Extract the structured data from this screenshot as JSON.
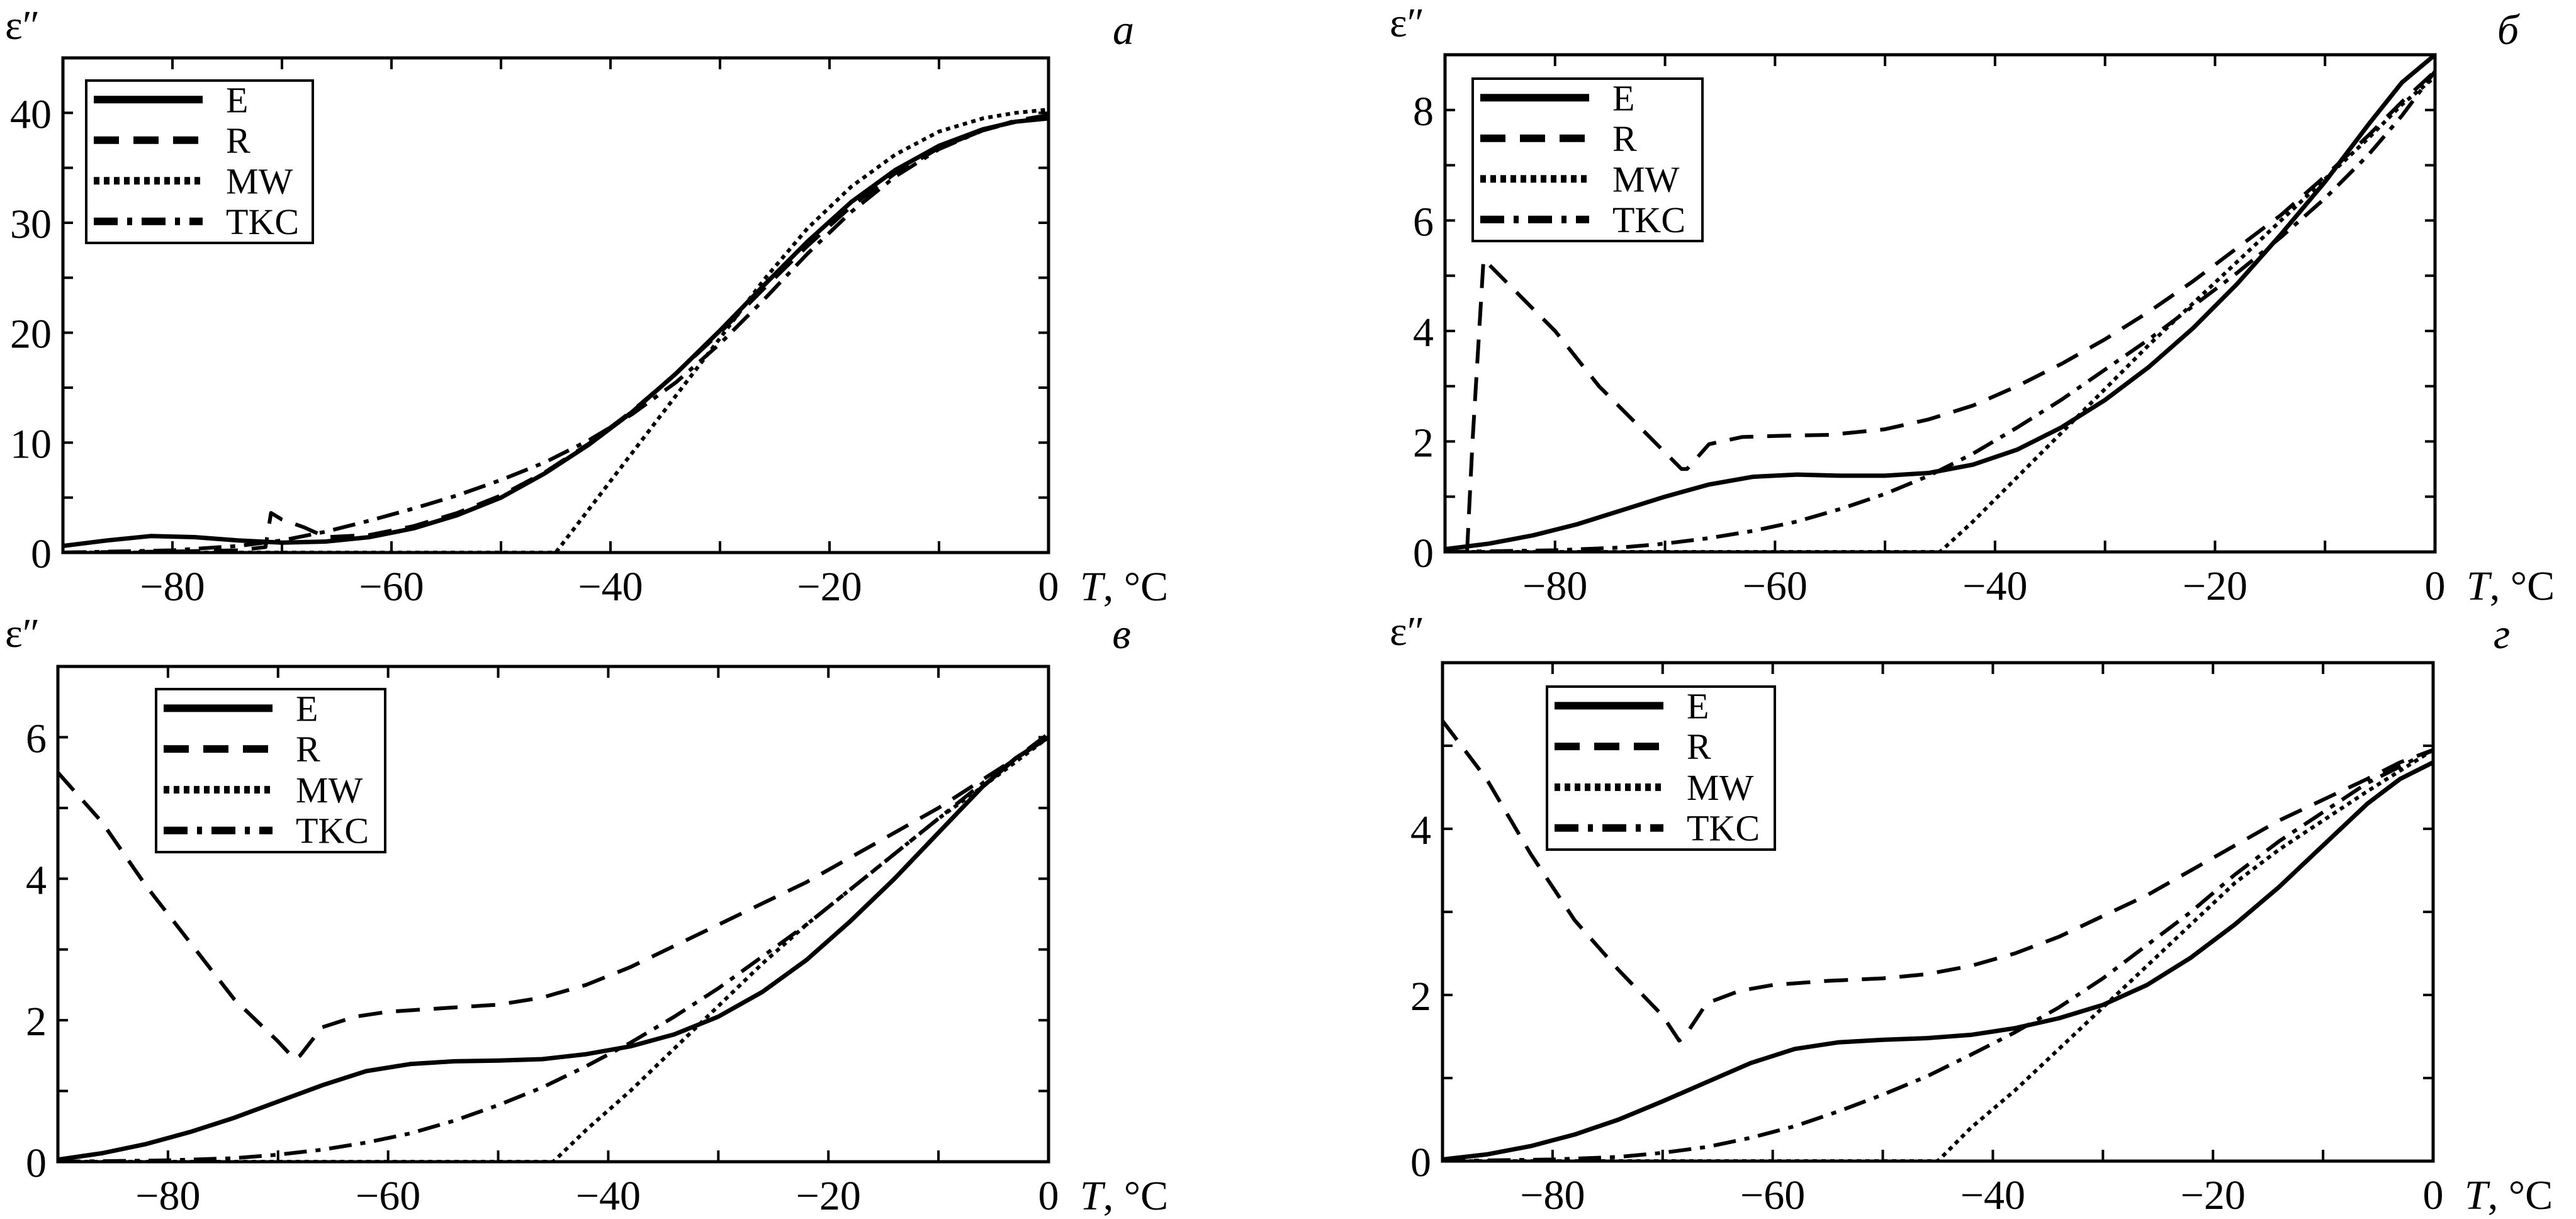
{
  "chart_data": [
    {
      "type": "line",
      "panel_label": "а",
      "xlabel": "T, °C",
      "ylabel": "ε″",
      "xlim": [
        -90,
        0
      ],
      "ylim": [
        0,
        45
      ],
      "xticks": [
        -80,
        -60,
        -40,
        -20,
        0
      ],
      "xticks_minor_step": 10,
      "yticks": [
        0,
        10,
        20,
        30,
        40
      ],
      "yticks_minor_step": 5,
      "legend": {
        "placement": "top-left",
        "entries": [
          "E",
          "R",
          "MW",
          "TKC"
        ]
      },
      "series": [
        {
          "name": "E",
          "style": "solid",
          "x": [
            -90,
            -86,
            -82,
            -78,
            -74,
            -70,
            -66,
            -62,
            -58,
            -54,
            -50,
            -46,
            -42,
            -38,
            -34,
            -30,
            -26,
            -22,
            -18,
            -14,
            -10,
            -6,
            -3,
            0
          ],
          "y": [
            0.6,
            1.1,
            1.5,
            1.4,
            1.1,
            0.9,
            1.0,
            1.4,
            2.2,
            3.4,
            5.0,
            7.2,
            9.8,
            12.8,
            16.3,
            20.2,
            24.3,
            28.3,
            31.9,
            34.8,
            37.0,
            38.5,
            39.2,
            39.5
          ]
        },
        {
          "name": "R",
          "style": "dashed",
          "x": [
            -90,
            -80,
            -74,
            -71.5,
            -71,
            -70,
            -68,
            -66,
            -62,
            -58,
            -54,
            -50,
            -46,
            -42,
            -38,
            -34,
            -30,
            -26,
            -22,
            -18,
            -14,
            -10,
            -6,
            -3,
            0
          ],
          "y": [
            0.0,
            0.1,
            0.2,
            0.5,
            3.6,
            3.0,
            2.3,
            1.4,
            1.6,
            2.4,
            3.6,
            5.2,
            7.3,
            9.9,
            12.9,
            16.3,
            20.0,
            24.0,
            27.9,
            31.5,
            34.5,
            36.8,
            38.4,
            39.3,
            39.8
          ]
        },
        {
          "name": "MW",
          "style": "dotted",
          "x": [
            -90,
            -45,
            -40,
            -35,
            -30,
            -26,
            -22,
            -18,
            -14,
            -10,
            -6,
            -3,
            0
          ],
          "y": [
            0.0,
            0.0,
            6.5,
            13.0,
            19.5,
            24.8,
            29.5,
            33.3,
            36.2,
            38.3,
            39.5,
            40.0,
            40.3
          ]
        },
        {
          "name": "TKC",
          "style": "dashdot",
          "x": [
            -90,
            -80,
            -74,
            -70,
            -66,
            -62,
            -58,
            -54,
            -50,
            -46,
            -42,
            -38,
            -34,
            -30,
            -26,
            -22,
            -18,
            -14,
            -10,
            -6,
            -3,
            0
          ],
          "y": [
            0.0,
            0.2,
            0.6,
            1.1,
            1.9,
            2.9,
            4.0,
            5.2,
            6.6,
            8.2,
            10.2,
            12.6,
            15.5,
            19.0,
            23.0,
            27.2,
            31.0,
            34.2,
            36.7,
            38.4,
            39.2,
            39.6
          ]
        }
      ]
    },
    {
      "type": "line",
      "panel_label": "б",
      "xlabel": "T, °C",
      "ylabel": "ε″",
      "xlim": [
        -90,
        0
      ],
      "ylim": [
        0,
        9
      ],
      "xticks": [
        -80,
        -60,
        -40,
        -20,
        0
      ],
      "xticks_minor_step": 10,
      "yticks": [
        0,
        2,
        4,
        6,
        8
      ],
      "yticks_minor_step": 1,
      "legend": {
        "placement": "top-left",
        "entries": [
          "E",
          "R",
          "MW",
          "TKC"
        ]
      },
      "series": [
        {
          "name": "E",
          "style": "solid",
          "x": [
            -90,
            -86,
            -82,
            -78,
            -74,
            -70,
            -66,
            -62,
            -58,
            -54,
            -50,
            -46,
            -42,
            -38,
            -34,
            -30,
            -26,
            -22,
            -18,
            -14,
            -10,
            -6,
            -3,
            0
          ],
          "y": [
            0.05,
            0.15,
            0.3,
            0.5,
            0.75,
            1.0,
            1.22,
            1.36,
            1.4,
            1.38,
            1.38,
            1.43,
            1.58,
            1.85,
            2.25,
            2.75,
            3.35,
            4.05,
            4.85,
            5.75,
            6.7,
            7.75,
            8.5,
            9.0
          ]
        },
        {
          "name": "R",
          "style": "dashed",
          "x": [
            -88,
            -87.5,
            -86.5,
            -84,
            -80,
            -76,
            -72,
            -68.5,
            -68,
            -66,
            -63,
            -60,
            -55,
            -50,
            -46,
            -42,
            -38,
            -34,
            -30,
            -26,
            -22,
            -18,
            -14,
            -10,
            -6,
            -3,
            0
          ],
          "y": [
            0.0,
            2.0,
            5.3,
            4.8,
            4.0,
            3.0,
            2.2,
            1.5,
            1.5,
            1.95,
            2.08,
            2.1,
            2.12,
            2.22,
            2.4,
            2.65,
            3.0,
            3.4,
            3.85,
            4.35,
            4.9,
            5.5,
            6.1,
            6.8,
            7.55,
            8.15,
            8.7
          ]
        },
        {
          "name": "MW",
          "style": "dotted",
          "x": [
            -90,
            -45,
            -42,
            -38,
            -34,
            -30,
            -26,
            -22,
            -18,
            -14,
            -10,
            -6,
            -3,
            0
          ],
          "y": [
            0.0,
            0.0,
            0.55,
            1.35,
            2.15,
            2.95,
            3.75,
            4.5,
            5.25,
            6.0,
            6.75,
            7.5,
            8.1,
            8.6
          ]
        },
        {
          "name": "TKC",
          "style": "dashdot",
          "x": [
            -90,
            -80,
            -74,
            -70,
            -66,
            -62,
            -58,
            -54,
            -50,
            -46,
            -42,
            -38,
            -34,
            -30,
            -26,
            -22,
            -18,
            -14,
            -10,
            -6,
            -3,
            0
          ],
          "y": [
            0.0,
            0.03,
            0.08,
            0.15,
            0.25,
            0.38,
            0.55,
            0.78,
            1.05,
            1.38,
            1.78,
            2.25,
            2.75,
            3.3,
            3.85,
            4.45,
            5.05,
            5.7,
            6.4,
            7.2,
            7.9,
            8.7
          ]
        }
      ]
    },
    {
      "type": "line",
      "panel_label": "в",
      "xlabel": "T, °C",
      "ylabel": "ε″",
      "xlim": [
        -90,
        0
      ],
      "ylim": [
        0,
        7
      ],
      "xticks": [
        -80,
        -60,
        -40,
        -20,
        0
      ],
      "xticks_minor_step": 10,
      "yticks": [
        0,
        2,
        4,
        6
      ],
      "yticks_minor_step": 1,
      "legend": {
        "placement": "top-left",
        "entries": [
          "E",
          "R",
          "MW",
          "TKC"
        ]
      },
      "series": [
        {
          "name": "E",
          "style": "solid",
          "x": [
            -90,
            -86,
            -82,
            -78,
            -74,
            -70,
            -66,
            -62,
            -58,
            -54,
            -50,
            -46,
            -42,
            -38,
            -34,
            -30,
            -26,
            -22,
            -18,
            -14,
            -10,
            -6,
            -3,
            0
          ],
          "y": [
            0.03,
            0.12,
            0.25,
            0.42,
            0.62,
            0.85,
            1.08,
            1.28,
            1.38,
            1.42,
            1.43,
            1.45,
            1.52,
            1.63,
            1.8,
            2.05,
            2.4,
            2.85,
            3.4,
            4.0,
            4.65,
            5.3,
            5.7,
            6.0
          ]
        },
        {
          "name": "R",
          "style": "dashed",
          "x": [
            -90,
            -86,
            -82,
            -78,
            -74,
            -70,
            -68.5,
            -68,
            -66,
            -63,
            -60,
            -55,
            -50,
            -46,
            -42,
            -38,
            -34,
            -30,
            -26,
            -22,
            -18,
            -14,
            -10,
            -6,
            -3,
            0
          ],
          "y": [
            5.5,
            4.8,
            3.9,
            3.1,
            2.3,
            1.7,
            1.45,
            1.5,
            1.9,
            2.05,
            2.12,
            2.17,
            2.22,
            2.32,
            2.5,
            2.75,
            3.05,
            3.35,
            3.65,
            3.95,
            4.3,
            4.65,
            5.0,
            5.4,
            5.7,
            6.0
          ]
        },
        {
          "name": "MW",
          "style": "dotted",
          "x": [
            -90,
            -45,
            -42,
            -38,
            -34,
            -30,
            -26,
            -22,
            -18,
            -14,
            -10,
            -6,
            -3,
            0
          ],
          "y": [
            0.0,
            0.0,
            0.45,
            1.0,
            1.6,
            2.2,
            2.8,
            3.35,
            3.85,
            4.35,
            4.85,
            5.3,
            5.65,
            6.0
          ]
        },
        {
          "name": "TKC",
          "style": "dashdot",
          "x": [
            -90,
            -80,
            -74,
            -70,
            -66,
            -62,
            -58,
            -54,
            -50,
            -46,
            -42,
            -38,
            -34,
            -30,
            -26,
            -22,
            -18,
            -14,
            -10,
            -6,
            -3,
            0
          ],
          "y": [
            0.0,
            0.02,
            0.05,
            0.1,
            0.17,
            0.27,
            0.4,
            0.58,
            0.8,
            1.05,
            1.35,
            1.68,
            2.05,
            2.45,
            2.9,
            3.35,
            3.85,
            4.35,
            4.85,
            5.35,
            5.7,
            6.05
          ]
        }
      ]
    },
    {
      "type": "line",
      "panel_label": "г",
      "xlabel": "T, °C",
      "ylabel": "ε″",
      "xlim": [
        -90,
        0
      ],
      "ylim": [
        0,
        6
      ],
      "xticks": [
        -80,
        -60,
        -40,
        -20,
        0
      ],
      "xticks_minor_step": 10,
      "yticks": [
        0,
        2,
        4
      ],
      "yticks_minor_step": 1,
      "legend": {
        "placement": "top-left",
        "entries": [
          "E",
          "R",
          "MW",
          "TKC"
        ]
      },
      "series": [
        {
          "name": "E",
          "style": "solid",
          "x": [
            -90,
            -86,
            -82,
            -78,
            -74,
            -70,
            -66,
            -62,
            -58,
            -54,
            -50,
            -46,
            -42,
            -38,
            -34,
            -30,
            -26,
            -22,
            -18,
            -14,
            -10,
            -6,
            -3,
            0
          ],
          "y": [
            0.02,
            0.08,
            0.18,
            0.32,
            0.5,
            0.72,
            0.95,
            1.18,
            1.35,
            1.43,
            1.46,
            1.48,
            1.52,
            1.6,
            1.72,
            1.88,
            2.12,
            2.45,
            2.85,
            3.3,
            3.8,
            4.3,
            4.6,
            4.8
          ]
        },
        {
          "name": "R",
          "style": "dashed",
          "x": [
            -90,
            -86,
            -82,
            -78,
            -74,
            -70,
            -68.5,
            -68,
            -66,
            -63,
            -60,
            -55,
            -50,
            -46,
            -42,
            -38,
            -34,
            -30,
            -26,
            -22,
            -18,
            -14,
            -10,
            -6,
            -3,
            0
          ],
          "y": [
            5.3,
            4.6,
            3.7,
            2.9,
            2.3,
            1.75,
            1.45,
            1.5,
            1.9,
            2.05,
            2.12,
            2.17,
            2.2,
            2.25,
            2.35,
            2.5,
            2.7,
            2.95,
            3.2,
            3.5,
            3.8,
            4.1,
            4.35,
            4.6,
            4.8,
            4.95
          ]
        },
        {
          "name": "MW",
          "style": "dotted",
          "x": [
            -90,
            -45,
            -42,
            -38,
            -34,
            -30,
            -26,
            -22,
            -18,
            -14,
            -10,
            -6,
            -3,
            0
          ],
          "y": [
            0.0,
            0.0,
            0.4,
            0.85,
            1.35,
            1.85,
            2.35,
            2.85,
            3.35,
            3.75,
            4.1,
            4.45,
            4.7,
            4.95
          ]
        },
        {
          "name": "TKC",
          "style": "dashdot",
          "x": [
            -90,
            -80,
            -74,
            -70,
            -66,
            -62,
            -58,
            -54,
            -50,
            -46,
            -42,
            -38,
            -34,
            -30,
            -26,
            -22,
            -18,
            -14,
            -10,
            -6,
            -3,
            0
          ],
          "y": [
            0.0,
            0.02,
            0.05,
            0.1,
            0.17,
            0.28,
            0.42,
            0.6,
            0.8,
            1.02,
            1.28,
            1.55,
            1.85,
            2.2,
            2.6,
            3.0,
            3.45,
            3.85,
            4.2,
            4.55,
            4.75,
            4.95
          ]
        }
      ]
    }
  ],
  "axis_text": {
    "ylabel": "ε″",
    "xlabel_var": "T",
    "xlabel_unit": ", °C"
  },
  "panels": [
    "а",
    "б",
    "в",
    "г"
  ]
}
